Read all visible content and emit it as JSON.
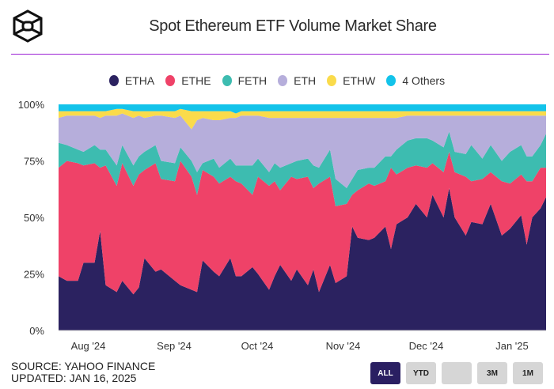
{
  "header": {
    "title": "Spot Ethereum ETF Volume Market Share",
    "logo_icon": "hexagon-cube-logo"
  },
  "footer": {
    "source": "SOURCE: YAHOO FINANCE",
    "updated": "UPDATED: JAN 16, 2025"
  },
  "range_buttons": [
    {
      "label": "ALL",
      "active": true
    },
    {
      "label": "YTD"
    },
    {
      "label": ""
    },
    {
      "label": "3M"
    },
    {
      "label": "1M"
    }
  ],
  "colors": {
    "accent_rule": "#9b1fd4",
    "active_button": "#2a1f62"
  },
  "chart_data": {
    "type": "area",
    "stacked": true,
    "title": "Spot Ethereum ETF Volume Market Share",
    "xlabel": "",
    "ylabel": "",
    "ylim": [
      0,
      100
    ],
    "yticks": [
      "0%",
      "25%",
      "50%",
      "75%",
      "100%"
    ],
    "xticks": [
      {
        "date": "2024-08-01",
        "label": "Aug '24"
      },
      {
        "date": "2024-09-01",
        "label": "Sep '24"
      },
      {
        "date": "2024-10-01",
        "label": "Oct '24"
      },
      {
        "date": "2024-11-01",
        "label": "Nov '24"
      },
      {
        "date": "2024-12-01",
        "label": "Dec '24"
      },
      {
        "date": "2025-01-01",
        "label": "Jan '25"
      }
    ],
    "xlim": [
      "2024-07-23",
      "2025-01-15"
    ],
    "legend_position": "top",
    "grid": false,
    "series": [
      {
        "name": "ETHA",
        "color": "#2b2260"
      },
      {
        "name": "ETHE",
        "color": "#ef4268"
      },
      {
        "name": "FETH",
        "color": "#3dbcb0"
      },
      {
        "name": "ETH",
        "color": "#b6aedb"
      },
      {
        "name": "ETHW",
        "color": "#fadb4b"
      },
      {
        "name": "4 Others",
        "color": "#13c3ea"
      }
    ],
    "x": [
      "2024-07-23",
      "2024-07-26",
      "2024-07-30",
      "2024-08-01",
      "2024-08-05",
      "2024-08-07",
      "2024-08-09",
      "2024-08-13",
      "2024-08-15",
      "2024-08-19",
      "2024-08-21",
      "2024-08-23",
      "2024-08-27",
      "2024-08-29",
      "2024-09-03",
      "2024-09-05",
      "2024-09-09",
      "2024-09-11",
      "2024-09-13",
      "2024-09-17",
      "2024-09-19",
      "2024-09-23",
      "2024-09-25",
      "2024-09-27",
      "2024-10-01",
      "2024-10-03",
      "2024-10-07",
      "2024-10-09",
      "2024-10-11",
      "2024-10-15",
      "2024-10-17",
      "2024-10-21",
      "2024-10-23",
      "2024-10-25",
      "2024-10-29",
      "2024-10-31",
      "2024-11-04",
      "2024-11-06",
      "2024-11-08",
      "2024-11-12",
      "2024-11-14",
      "2024-11-18",
      "2024-11-20",
      "2024-11-22",
      "2024-11-26",
      "2024-11-29",
      "2024-12-03",
      "2024-12-05",
      "2024-12-09",
      "2024-12-11",
      "2024-12-13",
      "2024-12-17",
      "2024-12-19",
      "2024-12-23",
      "2024-12-26",
      "2024-12-30",
      "2025-01-02",
      "2025-01-06",
      "2025-01-08",
      "2025-01-10",
      "2025-01-13",
      "2025-01-15"
    ],
    "values": [
      [
        24,
        48,
        11,
        11,
        3,
        3
      ],
      [
        22,
        53,
        7,
        13,
        2,
        3
      ],
      [
        22,
        52,
        6,
        15,
        2,
        3
      ],
      [
        30,
        43,
        6,
        16,
        2,
        3
      ],
      [
        30,
        44,
        8,
        13,
        2,
        3
      ],
      [
        44,
        28,
        8,
        14,
        3,
        3
      ],
      [
        20,
        53,
        7,
        15,
        2,
        3
      ],
      [
        17,
        47,
        9,
        22,
        3,
        2
      ],
      [
        22,
        52,
        8,
        14,
        2,
        2
      ],
      [
        16,
        48,
        9,
        21,
        3,
        3
      ],
      [
        19,
        50,
        8,
        18,
        2,
        3
      ],
      [
        32,
        39,
        8,
        15,
        3,
        3
      ],
      [
        26,
        48,
        8,
        13,
        2,
        3
      ],
      [
        27,
        40,
        8,
        20,
        2,
        3
      ],
      [
        22,
        44,
        8,
        20,
        3,
        3
      ],
      [
        20,
        55,
        6,
        14,
        3,
        2
      ],
      [
        18,
        50,
        7,
        14,
        8,
        3
      ],
      [
        17,
        43,
        10,
        23,
        4,
        3
      ],
      [
        31,
        40,
        3,
        20,
        3,
        3
      ],
      [
        26,
        42,
        8,
        17,
        4,
        3
      ],
      [
        24,
        41,
        7,
        21,
        4,
        3
      ],
      [
        32,
        36,
        8,
        18,
        3,
        3
      ],
      [
        24,
        42,
        7,
        21,
        2,
        4
      ],
      [
        24,
        41,
        8,
        22,
        2,
        3
      ],
      [
        28,
        32,
        13,
        22,
        2,
        3
      ],
      [
        25,
        43,
        8,
        19,
        2,
        3
      ],
      [
        18,
        46,
        6,
        24,
        3,
        3
      ],
      [
        24,
        42,
        8,
        20,
        3,
        3
      ],
      [
        29,
        33,
        10,
        22,
        3,
        3
      ],
      [
        22,
        46,
        6,
        20,
        3,
        3
      ],
      [
        27,
        40,
        8,
        19,
        3,
        3
      ],
      [
        20,
        48,
        8,
        18,
        3,
        3
      ],
      [
        27,
        36,
        10,
        21,
        3,
        3
      ],
      [
        17,
        48,
        7,
        22,
        3,
        3
      ],
      [
        29,
        39,
        12,
        14,
        3,
        3
      ],
      [
        21,
        34,
        12,
        27,
        3,
        3
      ],
      [
        24,
        32,
        7,
        31,
        3,
        3
      ],
      [
        46,
        14,
        7,
        27,
        3,
        3
      ],
      [
        41,
        21,
        9,
        23,
        3,
        3
      ],
      [
        40,
        25,
        7,
        22,
        3,
        3
      ],
      [
        41,
        23,
        8,
        22,
        3,
        3
      ],
      [
        46,
        20,
        11,
        17,
        3,
        3
      ],
      [
        36,
        36,
        5,
        17,
        3,
        3
      ],
      [
        47,
        22,
        11,
        14,
        3,
        3
      ],
      [
        50,
        22,
        12,
        11,
        2,
        3
      ],
      [
        56,
        17,
        12,
        10,
        2,
        3
      ],
      [
        50,
        22,
        13,
        10,
        2,
        3
      ],
      [
        60,
        14,
        10,
        11,
        2,
        3
      ],
      [
        50,
        20,
        11,
        14,
        2,
        3
      ],
      [
        63,
        16,
        9,
        7,
        2,
        3
      ],
      [
        50,
        20,
        9,
        16,
        2,
        3
      ],
      [
        42,
        26,
        10,
        17,
        2,
        3
      ],
      [
        48,
        18,
        16,
        13,
        2,
        3
      ],
      [
        47,
        20,
        9,
        19,
        2,
        3
      ],
      [
        56,
        14,
        12,
        13,
        2,
        3
      ],
      [
        42,
        24,
        9,
        20,
        2,
        3
      ],
      [
        45,
        20,
        14,
        16,
        2,
        3
      ],
      [
        51,
        18,
        13,
        13,
        2,
        3
      ],
      [
        38,
        28,
        11,
        18,
        2,
        3
      ],
      [
        50,
        16,
        11,
        18,
        2,
        3
      ],
      [
        54,
        18,
        10,
        13,
        2,
        3
      ],
      [
        59,
        13,
        15,
        8,
        2,
        3
      ]
    ]
  }
}
